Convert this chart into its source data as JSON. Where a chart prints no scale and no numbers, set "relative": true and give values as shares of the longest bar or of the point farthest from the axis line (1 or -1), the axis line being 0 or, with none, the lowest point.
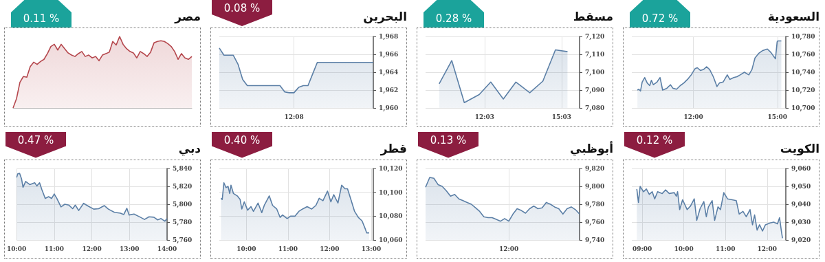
{
  "chart_data": [
    {
      "type": "area",
      "title": "السعودية",
      "annotations": [
        "% 0.72"
      ],
      "color": "#5b7fa6",
      "grid": true,
      "x": [
        10.0,
        10.05,
        10.11,
        10.17,
        10.26,
        10.35,
        10.44,
        10.5,
        10.57,
        10.7,
        10.81,
        10.9,
        11.05,
        11.18,
        11.27,
        11.4,
        11.53,
        11.66,
        11.79,
        11.92,
        12.06,
        12.14,
        12.25,
        12.36,
        12.47,
        12.58,
        12.71,
        12.84,
        12.93,
        13.06,
        13.21,
        13.3,
        13.44,
        13.56,
        13.67,
        13.82,
        13.98,
        14.09,
        14.2,
        14.33,
        14.46,
        14.64,
        14.77,
        14.93,
        14.99,
        15.01,
        15.14
      ],
      "values": [
        10720,
        10721,
        10719,
        10729,
        10734,
        10728,
        10725,
        10731,
        10726,
        10729,
        10734,
        10720,
        10722,
        10726,
        10722,
        10721,
        10725,
        10728,
        10732,
        10737,
        10744,
        10745,
        10742,
        10743,
        10746,
        10743,
        10735,
        10724,
        10728,
        10729,
        10737,
        10732,
        10734,
        10735,
        10737,
        10740,
        10737,
        10743,
        10756,
        10761,
        10764,
        10766,
        10762,
        10755,
        10774,
        10775,
        10775
      ],
      "xlim": [
        9.8,
        15.3
      ],
      "ylim": [
        10700,
        10780
      ],
      "xticks": [
        {
          "value": 12,
          "label": "12:00"
        },
        {
          "value": 15,
          "label": "15:00"
        }
      ],
      "yticks": [
        {
          "value": 10700,
          "label": "10,700"
        },
        {
          "value": 10720,
          "label": "10,720"
        },
        {
          "value": 10740,
          "label": "10,740"
        },
        {
          "value": 10760,
          "label": "10,760"
        },
        {
          "value": 10780,
          "label": "10,780"
        }
      ]
    },
    {
      "type": "area",
      "title": "مسقط",
      "annotations": [
        "% 0.28"
      ],
      "color": "#5b7fa6",
      "grid": true,
      "x": [
        10.28,
        10.77,
        11.26,
        11.84,
        12.29,
        12.78,
        13.27,
        13.81,
        14.32,
        14.81,
        15.28
      ],
      "values": [
        7093.5,
        7106.5,
        7083,
        7087.5,
        7094.5,
        7085,
        7094.5,
        7088.5,
        7095,
        7112.5,
        7111.5
      ],
      "xlim": [
        9.75,
        15.75
      ],
      "ylim": [
        7080,
        7120
      ],
      "xticks": [
        {
          "value": 12.05,
          "label": "12:03"
        },
        {
          "value": 15.05,
          "label": "15:03"
        }
      ],
      "yticks": [
        {
          "value": 7080,
          "label": "7,080"
        },
        {
          "value": 7090,
          "label": "7,090"
        },
        {
          "value": 7100,
          "label": "7,100"
        },
        {
          "value": 7110,
          "label": "7,110"
        },
        {
          "value": 7120,
          "label": "7,120"
        }
      ]
    },
    {
      "type": "area",
      "title": "البحرين",
      "annotations": [
        "% 0.08"
      ],
      "color": "#5b7fa6",
      "grid": true,
      "categories": [
        null,
        null,
        null,
        null,
        null,
        null,
        null,
        null,
        null,
        null,
        null,
        null,
        null,
        null,
        null,
        null,
        "12:08",
        null,
        null,
        null,
        null,
        null,
        null,
        null,
        null,
        null,
        null,
        null,
        null,
        null,
        null,
        null,
        null,
        null
      ],
      "values": [
        1966.7,
        1965.9,
        1965.9,
        1965.9,
        1964.9,
        1963.2,
        1962.5,
        1962.5,
        1962.5,
        1962.5,
        1962.5,
        1962.5,
        1962.5,
        1962.5,
        1961.8,
        1961.7,
        1961.7,
        1962.3,
        1962.5,
        1962.5,
        1963.8,
        1965.1,
        1965.1,
        1965.1,
        1965.1,
        1965.1,
        1965.1,
        1965.1,
        1965.1,
        1965.1,
        1965.1,
        1965.1,
        1965.1,
        1965.1
      ],
      "ylim": [
        1960,
        1968
      ],
      "yticks": [
        {
          "value": 1960,
          "label": "1,960"
        },
        {
          "value": 1962,
          "label": "1,962"
        },
        {
          "value": 1964,
          "label": "1,964"
        },
        {
          "value": 1966,
          "label": "1,966"
        },
        {
          "value": 1968,
          "label": "1,968"
        }
      ]
    },
    {
      "type": "area",
      "title": "مصر",
      "annotations": [
        "% 0.11"
      ],
      "color": "#b5474d",
      "relative": true,
      "categories": [
        null,
        null,
        null,
        null,
        null,
        null,
        null,
        null,
        null,
        null,
        null,
        null,
        null,
        null,
        null,
        null,
        null,
        null,
        null,
        null,
        null,
        null,
        null,
        null,
        null,
        null,
        null,
        null,
        null,
        null,
        null,
        null,
        null,
        null,
        null,
        null,
        null,
        null,
        null,
        null,
        null,
        null,
        null,
        null,
        null,
        null,
        null,
        null,
        null,
        null,
        null,
        null,
        null
      ],
      "values": [
        0,
        0.13,
        0.36,
        0.44,
        0.43,
        0.58,
        0.64,
        0.61,
        0.65,
        0.68,
        0.76,
        0.86,
        0.89,
        0.81,
        0.89,
        0.83,
        0.77,
        0.74,
        0.72,
        0.76,
        0.79,
        0.72,
        0.74,
        0.7,
        0.72,
        0.66,
        0.74,
        0.76,
        0.78,
        0.93,
        0.88,
        1,
        0.89,
        0.83,
        0.79,
        0.77,
        0.7,
        0.79,
        0.76,
        0.72,
        0.78,
        0.91,
        0.93,
        0.94,
        0.93,
        0.9,
        0.86,
        0.79,
        0.68,
        0.76,
        0.7,
        0.68,
        0.72
      ]
    },
    {
      "type": "area",
      "title": "الكويت",
      "annotations": [
        "% 0.12"
      ],
      "color": "#5b7fa6",
      "grid": true,
      "x": [
        8.87,
        8.91,
        8.95,
        9.03,
        9.1,
        9.17,
        9.24,
        9.3,
        9.37,
        9.48,
        9.56,
        9.65,
        9.77,
        9.82,
        9.85,
        9.9,
        9.97,
        10.08,
        10.16,
        10.25,
        10.31,
        10.39,
        10.48,
        10.54,
        10.59,
        10.68,
        10.74,
        10.82,
        10.88,
        10.96,
        11.05,
        11.16,
        11.26,
        11.33,
        11.42,
        11.5,
        11.59,
        11.65,
        11.7,
        11.76,
        11.82,
        11.89,
        11.96,
        12.07,
        12.16,
        12.25,
        12.3,
        12.34,
        12.37
      ],
      "values": [
        9048.5,
        9041,
        9050,
        9047,
        9048.5,
        9045.5,
        9047,
        9043,
        9047,
        9046,
        9048,
        9046,
        9046.5,
        9044.5,
        9047,
        9037,
        9042.5,
        9037,
        9039,
        9043,
        9031,
        9037.5,
        9041.5,
        9033,
        9038.5,
        9042,
        9031,
        9038.5,
        9037,
        9046.5,
        9043,
        9042.5,
        9042,
        9034.5,
        9036,
        9033,
        9037,
        9028.5,
        9034,
        9025.5,
        9028.5,
        9025,
        9028.5,
        9029.5,
        9030,
        9029,
        9032.5,
        9025.5,
        9021
      ],
      "xlim": [
        8.75,
        12.45
      ],
      "ylim": [
        9020,
        9060
      ],
      "xticks": [
        {
          "value": 9,
          "label": "09:00"
        },
        {
          "value": 10,
          "label": "10:00"
        },
        {
          "value": 11,
          "label": "11:00"
        },
        {
          "value": 12,
          "label": "12:00"
        }
      ],
      "yticks": [
        {
          "value": 9020,
          "label": "9,020"
        },
        {
          "value": 9030,
          "label": "9,030"
        },
        {
          "value": 9040,
          "label": "9,040"
        },
        {
          "value": 9050,
          "label": "9,050"
        },
        {
          "value": 9060,
          "label": "9,060"
        }
      ]
    },
    {
      "type": "area",
      "title": "أبوظبي",
      "annotations": [
        "% 0.13"
      ],
      "color": "#5b7fa6",
      "grid": true,
      "categories": [
        null,
        null,
        null,
        null,
        null,
        null,
        null,
        null,
        null,
        null,
        null,
        null,
        null,
        null,
        null,
        null,
        null,
        null,
        null,
        null,
        "12:00",
        null,
        null,
        null,
        null,
        null,
        null,
        null,
        null,
        null,
        null,
        null,
        null,
        null,
        null,
        null,
        null,
        null
      ],
      "values": [
        9799,
        9810,
        9809,
        9802,
        9800,
        9795,
        9789,
        9791,
        9786,
        9784,
        9782,
        9780,
        9776,
        9772,
        9766,
        9765,
        9765,
        9763,
        9761,
        9764,
        9761,
        9769,
        9775,
        9773,
        9770,
        9775,
        9778,
        9775,
        9776,
        9782,
        9780,
        9777,
        9775,
        9769,
        9775,
        9777,
        9774,
        9769
      ],
      "ylim": [
        9740,
        9820
      ],
      "yticks": [
        {
          "value": 9740,
          "label": "9,740"
        },
        {
          "value": 9760,
          "label": "9,760"
        },
        {
          "value": 9780,
          "label": "9,780"
        },
        {
          "value": 9800,
          "label": "9,800"
        },
        {
          "value": 9820,
          "label": "9,820"
        }
      ]
    },
    {
      "type": "area",
      "title": "قطر",
      "annotations": [
        "% 0.40"
      ],
      "color": "#5b7fa6",
      "grid": true,
      "x": [
        9.39,
        9.42,
        9.46,
        9.51,
        9.56,
        9.6,
        9.63,
        9.69,
        9.78,
        9.85,
        9.89,
        9.95,
        10.03,
        10.11,
        10.17,
        10.28,
        10.37,
        10.43,
        10.55,
        10.63,
        10.73,
        10.81,
        10.87,
        10.98,
        11.06,
        11.17,
        11.26,
        11.35,
        11.46,
        11.57,
        11.67,
        11.75,
        11.84,
        11.95,
        12.03,
        12.1,
        12.2,
        12.29,
        12.37,
        12.43,
        12.52,
        12.6,
        12.69,
        12.78,
        12.86,
        12.89,
        12.95
      ],
      "values": [
        10095,
        10094,
        10108,
        10104,
        10105,
        10099,
        10106,
        10099,
        10097,
        10094,
        10086,
        10092,
        10085,
        10088,
        10084,
        10091,
        10083,
        10089,
        10097,
        10089,
        10086,
        10079,
        10081,
        10078,
        10080,
        10080,
        10084,
        10086,
        10088,
        10086,
        10089,
        10095,
        10093,
        10101,
        10092,
        10098,
        10091,
        10106,
        10103,
        10103,
        10093,
        10084,
        10079,
        10076,
        10069,
        10066,
        10066
      ],
      "xlim": [
        9.35,
        13.05
      ],
      "ylim": [
        10060,
        10120
      ],
      "xticks": [
        {
          "value": 10,
          "label": "10:00"
        },
        {
          "value": 11,
          "label": "11:00"
        },
        {
          "value": 12,
          "label": "12:00"
        },
        {
          "value": 13,
          "label": "13:00"
        }
      ],
      "yticks": [
        {
          "value": 10060,
          "label": "10,060"
        },
        {
          "value": 10080,
          "label": "10,080"
        },
        {
          "value": 10100,
          "label": "10,100"
        },
        {
          "value": 10120,
          "label": "10,120"
        }
      ]
    },
    {
      "type": "area",
      "title": "دبي",
      "annotations": [
        "% 0.47"
      ],
      "color": "#5b7fa6",
      "grid": true,
      "x": [
        10.0,
        10.03,
        10.08,
        10.13,
        10.17,
        10.24,
        10.35,
        10.48,
        10.54,
        10.61,
        10.67,
        10.76,
        10.85,
        10.93,
        11.0,
        11.07,
        11.18,
        11.28,
        11.39,
        11.49,
        11.56,
        11.65,
        11.78,
        11.92,
        12.05,
        12.18,
        12.33,
        12.44,
        12.6,
        12.76,
        12.85,
        12.93,
        12.99,
        13.12,
        13.29,
        13.4,
        13.52,
        13.65,
        13.75,
        13.84,
        13.94,
        14.0
      ],
      "values": [
        5830,
        5834,
        5834.5,
        5828.5,
        5819,
        5825.5,
        5822,
        5824,
        5820.5,
        5824,
        5816.5,
        5806.5,
        5808.5,
        5806.5,
        5811.5,
        5806.5,
        5797,
        5800,
        5799,
        5795,
        5799,
        5793,
        5801,
        5797.5,
        5794.5,
        5795,
        5798.5,
        5794.5,
        5791,
        5790,
        5788.5,
        5795.5,
        5788,
        5789,
        5785.5,
        5783,
        5786,
        5785.5,
        5782.5,
        5784,
        5781,
        5784
      ],
      "xlim": [
        10,
        14
      ],
      "ylim": [
        5760,
        5840
      ],
      "xticks": [
        {
          "value": 10,
          "label": "10:00"
        },
        {
          "value": 11,
          "label": "11:00"
        },
        {
          "value": 12,
          "label": "12:00"
        },
        {
          "value": 13,
          "label": "13:00"
        },
        {
          "value": 14,
          "label": "14:00"
        }
      ],
      "yticks": [
        {
          "value": 5760,
          "label": "5,760"
        },
        {
          "value": 5780,
          "label": "5,780"
        },
        {
          "value": 5800,
          "label": "5,800"
        },
        {
          "value": 5820,
          "label": "5,820"
        },
        {
          "value": 5840,
          "label": "5,840"
        }
      ]
    }
  ]
}
